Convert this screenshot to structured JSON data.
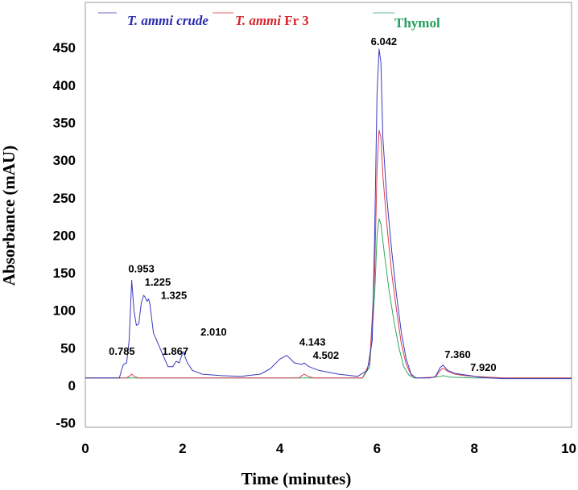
{
  "chart_data": {
    "type": "line",
    "title": "",
    "xlabel": "Time (minutes)",
    "ylabel": "Absorbance (mAU)",
    "xlim": [
      0,
      10
    ],
    "ylim": [
      -50,
      475
    ],
    "x_ticks": [
      "0",
      "2",
      "4",
      "6",
      "8",
      "10"
    ],
    "y_ticks": [
      "-50",
      "0",
      "50",
      "100",
      "150",
      "200",
      "250",
      "300",
      "350",
      "400",
      "450"
    ],
    "grid": false,
    "legend_position": "top",
    "legend": [
      {
        "label_italic": "T. ammi crude",
        "label_plain": "",
        "color": "#2a2ab0"
      },
      {
        "label_italic": "T. ammi",
        "label_plain": " Fr 3",
        "color": "#d8262e"
      },
      {
        "label_italic": "",
        "label_plain": "Thymol",
        "color": "#24a060"
      }
    ],
    "series": [
      {
        "name": "T. ammi crude",
        "color": "#3a3ac0",
        "x": [
          0,
          0.7,
          0.75,
          0.785,
          0.85,
          0.9,
          0.953,
          1.0,
          1.05,
          1.1,
          1.15,
          1.2,
          1.225,
          1.27,
          1.3,
          1.325,
          1.4,
          1.5,
          1.6,
          1.7,
          1.8,
          1.867,
          1.93,
          2.01,
          2.1,
          2.2,
          2.4,
          2.8,
          3.2,
          3.6,
          3.8,
          4.0,
          4.143,
          4.3,
          4.45,
          4.502,
          4.6,
          4.8,
          5.2,
          5.6,
          5.8,
          5.9,
          5.95,
          6.0,
          6.042,
          6.08,
          6.12,
          6.2,
          6.3,
          6.4,
          6.5,
          6.6,
          6.7,
          6.8,
          6.9,
          7.0,
          7.1,
          7.2,
          7.3,
          7.36,
          7.45,
          7.6,
          7.8,
          7.92,
          8.1,
          8.3,
          8.6,
          8.8,
          10
        ],
        "y": [
          10,
          10,
          22,
          28,
          30,
          60,
          140,
          100,
          80,
          82,
          110,
          120,
          118,
          112,
          115,
          110,
          70,
          55,
          40,
          25,
          25,
          32,
          30,
          45,
          30,
          20,
          15,
          13,
          12,
          15,
          22,
          35,
          40,
          30,
          28,
          30,
          25,
          20,
          15,
          12,
          20,
          60,
          200,
          390,
          448,
          430,
          330,
          250,
          180,
          120,
          70,
          35,
          15,
          10,
          10,
          10,
          10,
          12,
          24,
          27,
          20,
          16,
          14,
          13,
          11,
          10,
          9,
          9,
          9
        ]
      },
      {
        "name": "T. ammi Fr 3",
        "color": "#d84050",
        "x": [
          0,
          0.85,
          0.92,
          0.953,
          1.0,
          1.1,
          1.5,
          4.4,
          4.45,
          4.502,
          4.58,
          4.7,
          5.7,
          5.85,
          5.95,
          6.0,
          6.042,
          6.08,
          6.12,
          6.2,
          6.3,
          6.4,
          6.5,
          6.6,
          6.7,
          6.8,
          7.2,
          7.3,
          7.36,
          7.45,
          7.6,
          7.8,
          8.0,
          8.3,
          8.6,
          8.8,
          10
        ],
        "y": [
          10,
          10,
          13,
          15,
          12,
          10,
          10,
          10,
          13,
          15,
          12,
          10,
          10,
          30,
          150,
          290,
          340,
          330,
          280,
          215,
          150,
          100,
          55,
          28,
          14,
          10,
          11,
          20,
          23,
          19,
          15,
          13,
          12,
          11,
          10,
          10,
          10
        ]
      },
      {
        "name": "Thymol",
        "color": "#30a860",
        "x": [
          0,
          5.7,
          5.85,
          5.95,
          6.0,
          6.042,
          6.08,
          6.15,
          6.25,
          6.35,
          6.45,
          6.55,
          6.65,
          6.75,
          7.0,
          7.3,
          7.36,
          7.5,
          8.0,
          10
        ],
        "y": [
          10,
          10,
          25,
          120,
          200,
          222,
          215,
          175,
          125,
          85,
          50,
          25,
          14,
          10,
          10,
          12,
          13,
          11,
          10,
          10
        ]
      }
    ],
    "annotations": [
      {
        "text": "0.785",
        "x": 0.785,
        "y": 28
      },
      {
        "text": "0.953",
        "x": 0.953,
        "y": 140
      },
      {
        "text": "1.225",
        "x": 1.225,
        "y": 120
      },
      {
        "text": "1.325",
        "x": 1.325,
        "y": 110
      },
      {
        "text": "1.867",
        "x": 1.867,
        "y": 32
      },
      {
        "text": "2.010",
        "x": 2.01,
        "y": 45
      },
      {
        "text": "4.143",
        "x": 4.143,
        "y": 40
      },
      {
        "text": "4.502",
        "x": 4.502,
        "y": 30
      },
      {
        "text": "6.042",
        "x": 6.042,
        "y": 448
      },
      {
        "text": "7.360",
        "x": 7.36,
        "y": 27
      },
      {
        "text": "7.920",
        "x": 7.92,
        "y": 13
      }
    ]
  }
}
